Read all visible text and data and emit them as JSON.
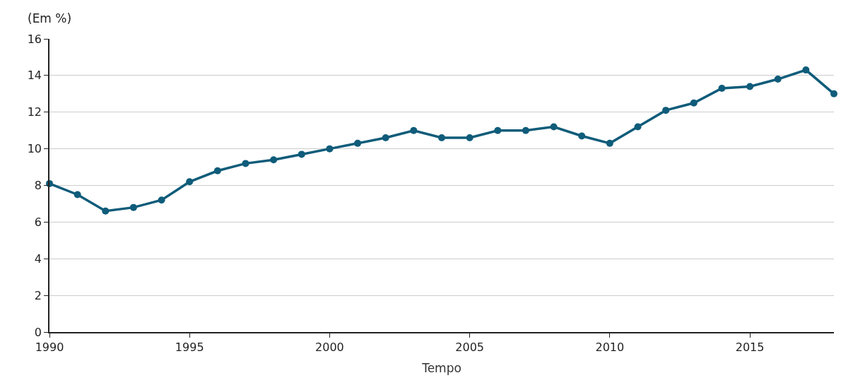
{
  "chart_data": {
    "type": "line",
    "ylabel": "(Em %)",
    "xlabel": "Tempo",
    "x": [
      1990,
      1991,
      1992,
      1993,
      1994,
      1995,
      1996,
      1997,
      1998,
      1999,
      2000,
      2001,
      2002,
      2003,
      2004,
      2005,
      2006,
      2007,
      2008,
      2009,
      2010,
      2011,
      2012,
      2013,
      2014,
      2015,
      2016,
      2017,
      2018
    ],
    "series": [
      {
        "color": "#0f5c7a",
        "values": [
          8.1,
          7.5,
          6.6,
          6.8,
          7.2,
          8.2,
          8.8,
          9.2,
          9.4,
          9.7,
          10.0,
          10.3,
          10.6,
          11.0,
          10.6,
          10.6,
          11.0,
          11.0,
          11.2,
          10.7,
          10.3,
          11.2,
          12.1,
          12.5,
          13.3,
          13.4,
          13.8,
          14.3,
          13.0
        ]
      }
    ],
    "xlim": [
      1990,
      2018
    ],
    "xticks": [
      1990,
      1995,
      2000,
      2005,
      2010,
      2015
    ],
    "ylim": [
      0,
      16
    ],
    "yticks": [
      0,
      2,
      4,
      6,
      8,
      10,
      12,
      14,
      16
    ],
    "grid": "y",
    "marker": "circle",
    "line_style": "solid",
    "legend": false
  }
}
